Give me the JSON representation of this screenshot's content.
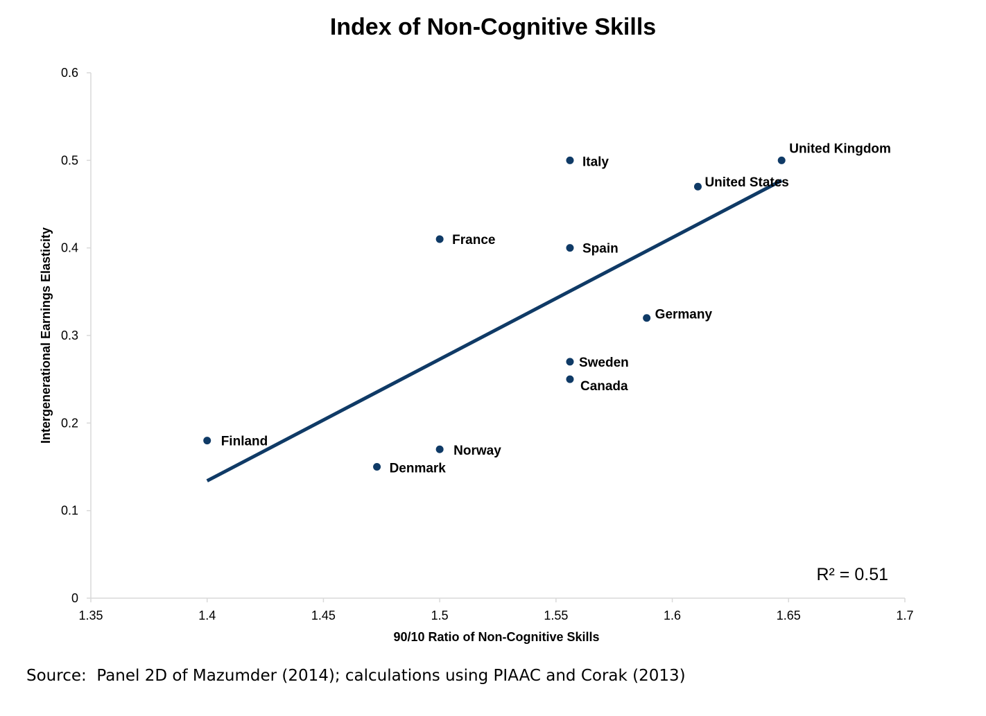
{
  "chart_data": {
    "type": "scatter",
    "title": "Index of Non-Cognitive Skills",
    "xlabel": "90/10 Ratio of Non-Cognitive Skills",
    "ylabel": "Intergenerational Earnings Elasticity",
    "xlim": [
      1.35,
      1.7
    ],
    "ylim": [
      0,
      0.6
    ],
    "xticks": [
      "1.35",
      "1.4",
      "1.45",
      "1.5",
      "1.55",
      "1.6",
      "1.65",
      "1.7"
    ],
    "yticks": [
      "0",
      "0.1",
      "0.2",
      "0.3",
      "0.4",
      "0.5",
      "0.6"
    ],
    "grid": false,
    "points": [
      {
        "label": "Finland",
        "x": 1.4,
        "y": 0.18
      },
      {
        "label": "Denmark",
        "x": 1.473,
        "y": 0.15
      },
      {
        "label": "Norway",
        "x": 1.5,
        "y": 0.17
      },
      {
        "label": "France",
        "x": 1.5,
        "y": 0.41
      },
      {
        "label": "Italy",
        "x": 1.556,
        "y": 0.5
      },
      {
        "label": "Spain",
        "x": 1.556,
        "y": 0.4
      },
      {
        "label": "Sweden",
        "x": 1.556,
        "y": 0.27
      },
      {
        "label": "Canada",
        "x": 1.556,
        "y": 0.25
      },
      {
        "label": "Germany",
        "x": 1.589,
        "y": 0.32
      },
      {
        "label": "United States",
        "x": 1.611,
        "y": 0.47
      },
      {
        "label": "United Kingdom",
        "x": 1.647,
        "y": 0.5
      }
    ],
    "trendline": {
      "type": "linear",
      "x": [
        1.4,
        1.647
      ],
      "y": [
        0.134,
        0.477
      ]
    },
    "annotation": "R² = 0.51",
    "colors": {
      "marker": "#0f3a66",
      "trendline": "#0f3a66",
      "axis": "#d9d9d9"
    }
  },
  "source_note": "Source:  Panel 2D of Mazumder (2014); calculations using PIAAC and Corak (2013)"
}
